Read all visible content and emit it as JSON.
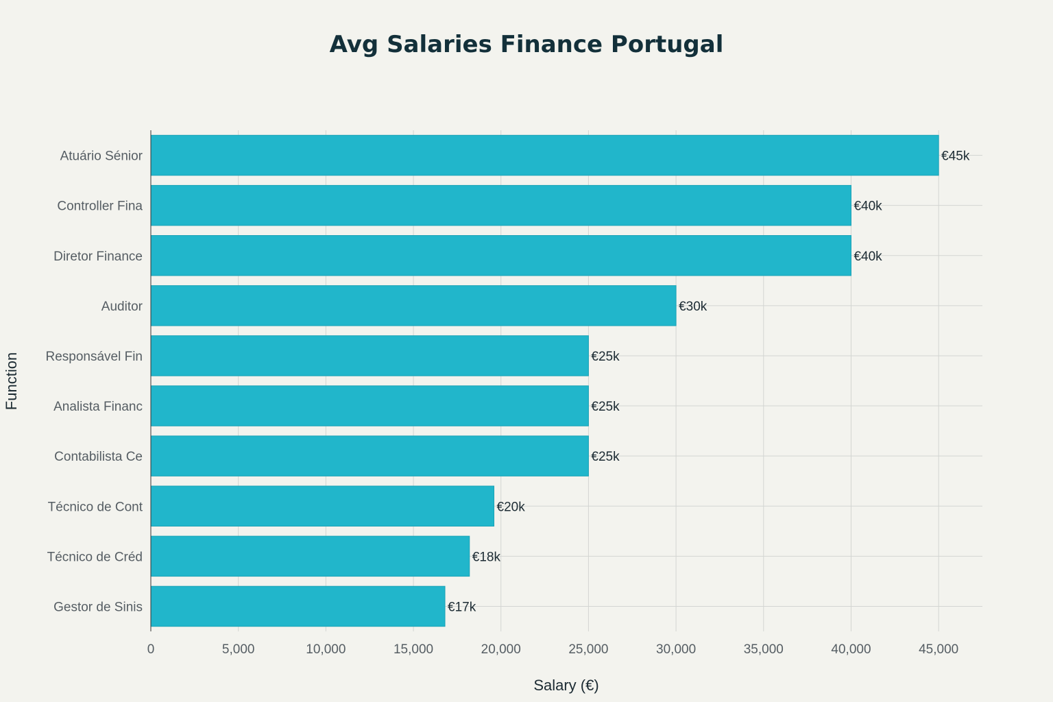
{
  "chart_data": {
    "type": "bar",
    "orientation": "horizontal",
    "title": "Avg Salaries Finance Portugal",
    "xlabel": "Salary (€)",
    "ylabel": "Function",
    "xlim": [
      0,
      47500
    ],
    "xticks": [
      0,
      5000,
      10000,
      15000,
      20000,
      25000,
      30000,
      35000,
      40000,
      45000
    ],
    "xtick_labels": [
      "0",
      "5,000",
      "10,000",
      "15,000",
      "20,000",
      "25,000",
      "30,000",
      "35,000",
      "40,000",
      "45,000"
    ],
    "grid": true,
    "bar_color": "#21b6cb",
    "background": "#f3f3ee",
    "categories": [
      "Atuário Sénior",
      "Controller Fina",
      "Diretor Finance",
      "Auditor",
      "Responsável Fin",
      "Analista Financ",
      "Contabilista Ce",
      "Técnico de Cont",
      "Técnico de Créd",
      "Gestor de Sinis"
    ],
    "values": [
      45000,
      40000,
      40000,
      30000,
      25000,
      25000,
      25000,
      19600,
      18200,
      16800
    ],
    "data_labels": [
      "€45k",
      "€40k",
      "€40k",
      "€30k",
      "€25k",
      "€25k",
      "€25k",
      "€20k",
      "€18k",
      "€17k"
    ]
  }
}
